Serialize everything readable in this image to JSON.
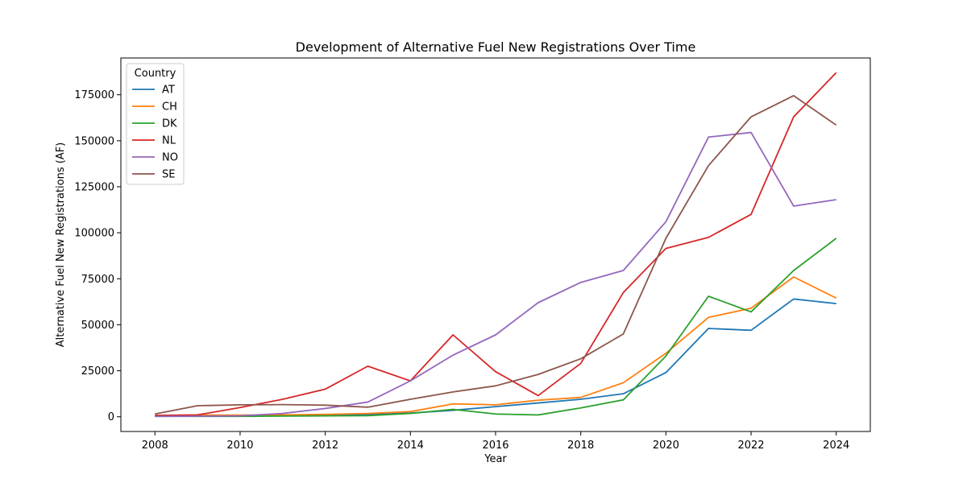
{
  "chart_data": {
    "type": "line",
    "title": "Development of Alternative Fuel New Registrations Over Time",
    "xlabel": "Year",
    "ylabel": "Alternative Fuel New Registrations (AF)",
    "xlim": [
      2007.2,
      2024.8
    ],
    "ylim": [
      -8000,
      195000
    ],
    "x_ticks": [
      2008,
      2010,
      2012,
      2014,
      2016,
      2018,
      2020,
      2022,
      2024
    ],
    "x_tick_labels": [
      "2008",
      "2010",
      "2012",
      "2014",
      "2016",
      "2018",
      "2020",
      "2022",
      "2024"
    ],
    "y_ticks": [
      0,
      25000,
      50000,
      75000,
      100000,
      125000,
      150000,
      175000
    ],
    "y_tick_labels": [
      "0",
      "25000",
      "50000",
      "75000",
      "100000",
      "125000",
      "150000",
      "175000"
    ],
    "grid": false,
    "legend": {
      "title": "Country",
      "placement": "top-left"
    },
    "x": [
      2008,
      2009,
      2010,
      2011,
      2012,
      2013,
      2014,
      2015,
      2016,
      2017,
      2018,
      2019,
      2020,
      2021,
      2022,
      2023,
      2024
    ],
    "series": [
      {
        "name": "AT",
        "color": "#1f77b4",
        "values": [
          300,
          400,
          500,
          700,
          1000,
          1200,
          2000,
          3500,
          5500,
          7500,
          9500,
          12500,
          24000,
          48000,
          47000,
          64000,
          61500
        ]
      },
      {
        "name": "CH",
        "color": "#ff7f0e",
        "values": [
          800,
          900,
          900,
          1000,
          1300,
          1800,
          2800,
          7000,
          6500,
          9000,
          10500,
          18500,
          34500,
          54000,
          59000,
          76000,
          64500
        ]
      },
      {
        "name": "DK",
        "color": "#2ca02c",
        "values": [
          200,
          200,
          200,
          400,
          500,
          600,
          1800,
          4000,
          1500,
          1000,
          4800,
          9200,
          33000,
          65500,
          57000,
          79500,
          97000
        ]
      },
      {
        "name": "NL",
        "color": "#d62728",
        "values": [
          700,
          1000,
          5000,
          9500,
          15000,
          27500,
          19500,
          44500,
          24500,
          11500,
          29000,
          67500,
          91500,
          97500,
          110000,
          163000,
          187000
        ]
      },
      {
        "name": "NO",
        "color": "#9467bd",
        "values": [
          200,
          300,
          500,
          1800,
          4500,
          8000,
          19500,
          33500,
          44500,
          62000,
          73000,
          79500,
          106000,
          152000,
          154500,
          114500,
          118000
        ]
      },
      {
        "name": "SE",
        "color": "#8c564b",
        "values": [
          1500,
          6000,
          6500,
          6600,
          6300,
          5200,
          9500,
          13500,
          16800,
          23000,
          31500,
          45000,
          97000,
          136500,
          163000,
          174500,
          158500
        ]
      }
    ]
  }
}
